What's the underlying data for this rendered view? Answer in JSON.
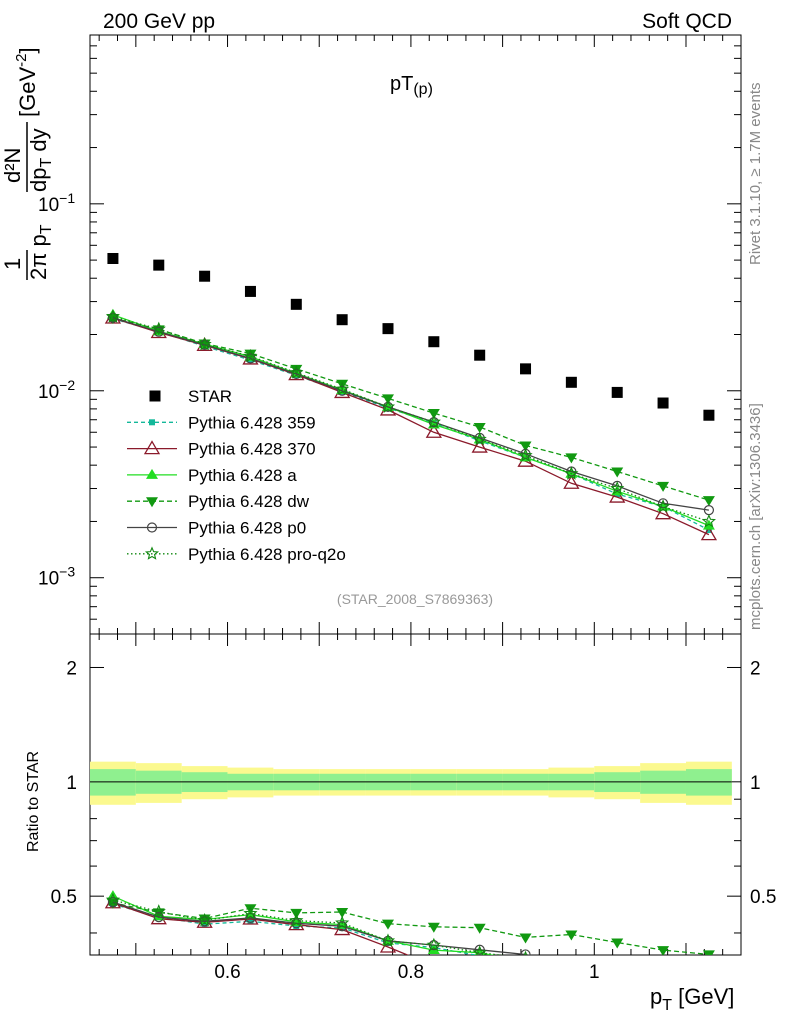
{
  "header": {
    "left": "200 GeV pp",
    "right": "Soft QCD",
    "plot_title_main": "pT",
    "plot_title_sub": "(p)",
    "analysis_id": "(STAR_2008_S7869363)",
    "side_rivet": "Rivet 3.1.10, ≥ 1.7M events",
    "side_mcplots": "mcplots.cern.ch [arXiv:1306.3436]"
  },
  "axes": {
    "x_label_main": "p",
    "x_label_sub": "T",
    "x_label_unit": " [GeV]",
    "y_label_prefix": "1",
    "y_label_2pi": "2π p",
    "y_label_2pi_sub": "T",
    "y_label_num": "d²N",
    "y_label_den": "dp",
    "y_label_den_sub": "T",
    "y_label_den_tail": " dy",
    "y_label_unit": "[GeV",
    "y_label_unit_sup": "-2",
    "y_label_unit_close": "]",
    "ratio_label": "Ratio to STAR",
    "x_ticks": [
      "0.6",
      "0.8",
      "1"
    ],
    "x_tick_values": [
      0.6,
      0.8,
      1.0
    ],
    "y_ticks_main": [
      {
        "value": 0.1,
        "base": "10",
        "exp": "−1"
      },
      {
        "value": 0.01,
        "base": "10",
        "exp": "−2"
      },
      {
        "value": 0.001,
        "base": "10",
        "exp": "−3"
      }
    ],
    "y_ticks_ratio": [
      "0.5",
      "1",
      "2"
    ],
    "y_tick_ratio_values": [
      0.5,
      1,
      2
    ]
  },
  "legend": {
    "entries": [
      {
        "key": "STAR",
        "label": "STAR"
      },
      {
        "key": "359",
        "label": "Pythia 6.428 359"
      },
      {
        "key": "370",
        "label": "Pythia 6.428 370"
      },
      {
        "key": "a",
        "label": "Pythia 6.428 a"
      },
      {
        "key": "dw",
        "label": "Pythia 6.428 dw"
      },
      {
        "key": "p0",
        "label": "Pythia 6.428 p0"
      },
      {
        "key": "proq2o",
        "label": "Pythia 6.428 pro-q2o"
      }
    ]
  },
  "chart_data": {
    "type": "scatter",
    "x_scale": "linear",
    "y_scale_main": "log",
    "y_scale_ratio": "log",
    "xlim": [
      0.45,
      1.16
    ],
    "ylim_main": [
      0.0005,
      0.8
    ],
    "ylim_ratio": [
      0.35,
      2.45
    ],
    "x": [
      0.475,
      0.525,
      0.575,
      0.625,
      0.675,
      0.725,
      0.775,
      0.825,
      0.875,
      0.925,
      0.975,
      1.025,
      1.075,
      1.125
    ],
    "data_series": {
      "key": "STAR",
      "name": "STAR",
      "color": "#000000",
      "values": [
        0.051,
        0.047,
        0.041,
        0.034,
        0.029,
        0.024,
        0.0215,
        0.0183,
        0.0155,
        0.0131,
        0.0111,
        0.0098,
        0.0086,
        0.0074
      ]
    },
    "band": {
      "inner_rel": [
        0.08,
        0.07,
        0.06,
        0.05,
        0.05,
        0.05,
        0.05,
        0.05,
        0.05,
        0.05,
        0.05,
        0.06,
        0.07,
        0.08
      ],
      "outer_rel": [
        0.13,
        0.12,
        0.1,
        0.09,
        0.08,
        0.08,
        0.08,
        0.08,
        0.08,
        0.08,
        0.09,
        0.1,
        0.12,
        0.13
      ]
    },
    "series": [
      {
        "key": "359",
        "name": "Pythia 6.428 359",
        "color": "#14b89a",
        "dash": "4,3",
        "marker": "square-small",
        "values": [
          0.0243,
          0.0207,
          0.0173,
          0.0146,
          0.0121,
          0.0099,
          0.0081,
          0.0067,
          0.0054,
          0.0044,
          0.0036,
          0.0028,
          0.0024,
          0.0018
        ]
      },
      {
        "key": "370",
        "name": "Pythia 6.428 370",
        "color": "#8b1a2b",
        "dash": "",
        "marker": "triangle-open",
        "values": [
          0.0245,
          0.0205,
          0.0175,
          0.0148,
          0.0122,
          0.0098,
          0.0079,
          0.006,
          0.005,
          0.0042,
          0.0032,
          0.0027,
          0.0022,
          0.0017
        ]
      },
      {
        "key": "a",
        "name": "Pythia 6.428 a",
        "color": "#22dd22",
        "dash": "",
        "marker": "triangle",
        "values": [
          0.0255,
          0.0208,
          0.0178,
          0.0152,
          0.0124,
          0.0101,
          0.0082,
          0.0066,
          0.0055,
          0.0044,
          0.0036,
          0.0029,
          0.0024,
          0.0019
        ]
      },
      {
        "key": "dw",
        "name": "Pythia 6.428 dw",
        "color": "#119911",
        "dash": "5,3",
        "marker": "triangle-down",
        "values": [
          0.0245,
          0.0213,
          0.0179,
          0.0158,
          0.0131,
          0.0109,
          0.0091,
          0.0076,
          0.0064,
          0.0051,
          0.0044,
          0.0037,
          0.0031,
          0.0026
        ]
      },
      {
        "key": "p0",
        "name": "Pythia 6.428 p0",
        "color": "#444444",
        "dash": "",
        "marker": "circle-open",
        "values": [
          0.0246,
          0.0207,
          0.0176,
          0.0149,
          0.0123,
          0.01,
          0.0082,
          0.0068,
          0.0056,
          0.0046,
          0.0037,
          0.0031,
          0.0025,
          0.0023
        ]
      },
      {
        "key": "proq2o",
        "name": "Pythia 6.428 pro-q2o",
        "color": "#118811",
        "dash": "1.5,2.5",
        "marker": "star-open",
        "values": [
          0.0249,
          0.0214,
          0.0177,
          0.0153,
          0.0125,
          0.0102,
          0.0082,
          0.0068,
          0.0055,
          0.0045,
          0.0036,
          0.003,
          0.0024,
          0.002
        ]
      }
    ]
  }
}
